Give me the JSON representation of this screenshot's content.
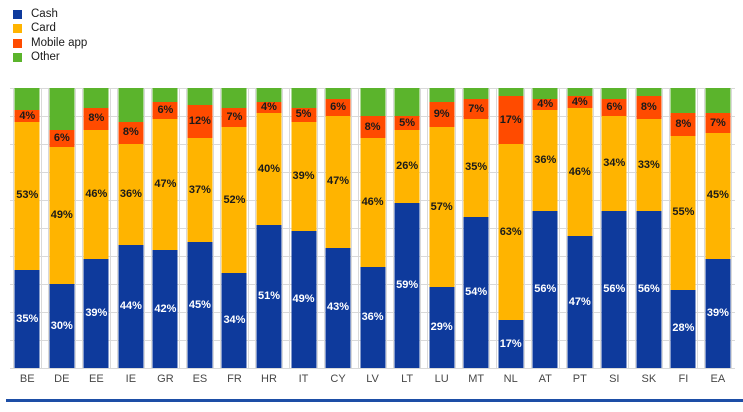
{
  "legend": [
    {
      "label": "Cash",
      "color": "#0e3a9c"
    },
    {
      "label": "Card",
      "color": "#ffb400"
    },
    {
      "label": "Mobile app",
      "color": "#ff4b00"
    },
    {
      "label": "Other",
      "color": "#5bb42c"
    }
  ],
  "chart_data": {
    "type": "bar",
    "subtype": "stacked-percentage-column",
    "title": "",
    "xlabel": "",
    "ylabel": "",
    "ylim": [
      0,
      100
    ],
    "grid": "horizontal lines every 10%",
    "legend_position": "top-left",
    "value_unit": "%",
    "categories": [
      "BE",
      "DE",
      "EE",
      "IE",
      "GR",
      "ES",
      "FR",
      "HR",
      "IT",
      "CY",
      "LV",
      "LT",
      "LU",
      "MT",
      "NL",
      "AT",
      "PT",
      "SI",
      "SK",
      "FI",
      "EA"
    ],
    "series": [
      {
        "name": "Cash",
        "color": "#0e3a9c",
        "label_color": "#ffffff",
        "show_labels": true,
        "values": [
          35,
          30,
          39,
          44,
          42,
          45,
          34,
          51,
          49,
          43,
          36,
          59,
          29,
          54,
          17,
          56,
          47,
          56,
          56,
          28,
          39
        ]
      },
      {
        "name": "Card",
        "color": "#ffb400",
        "label_color": "#1a1a1a",
        "show_labels": true,
        "values": [
          53,
          49,
          46,
          36,
          47,
          37,
          52,
          40,
          39,
          47,
          46,
          26,
          57,
          35,
          63,
          36,
          46,
          34,
          33,
          55,
          45
        ]
      },
      {
        "name": "Mobile app",
        "color": "#ff4b00",
        "label_color": "#1a1a1a",
        "show_labels": true,
        "values": [
          4,
          6,
          8,
          8,
          6,
          12,
          7,
          4,
          5,
          6,
          8,
          5,
          9,
          7,
          17,
          4,
          4,
          6,
          8,
          8,
          7
        ]
      },
      {
        "name": "Other",
        "color": "#5bb42c",
        "label_color": null,
        "show_labels": false,
        "values": [
          8,
          15,
          7,
          12,
          5,
          6,
          7,
          5,
          7,
          4,
          10,
          10,
          5,
          4,
          3,
          4,
          3,
          4,
          3,
          9,
          9
        ]
      }
    ]
  },
  "footer_rule_color": "#1d4ea6"
}
